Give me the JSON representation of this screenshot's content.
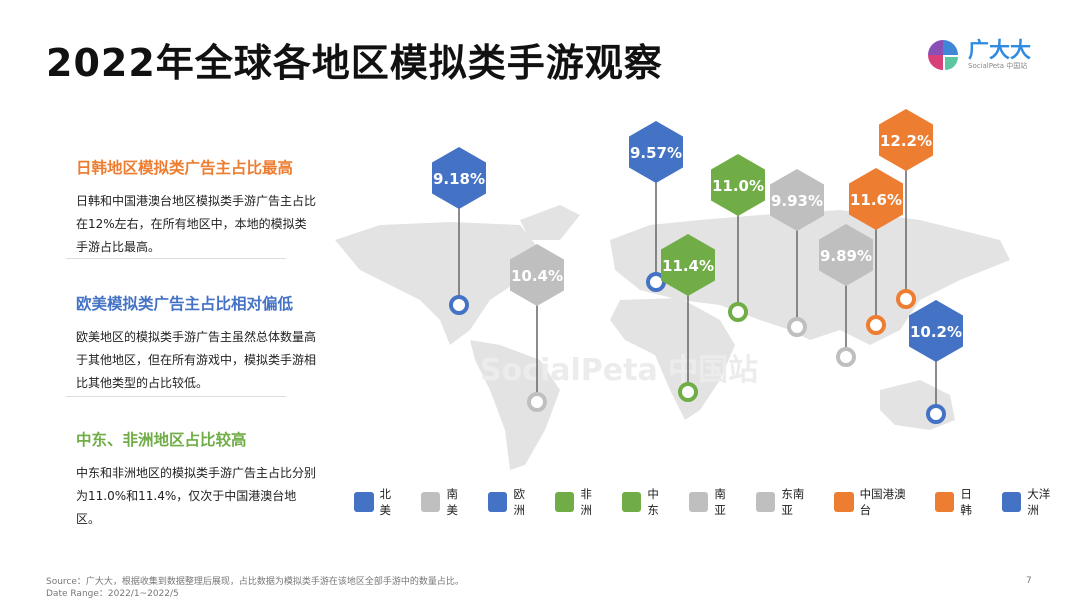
{
  "title": "2022年全球各地区模拟类手游观察",
  "logo": {
    "name": "广大大",
    "sub": "SocialPeta 中国站"
  },
  "watermark": "SocialPeta 中国站",
  "sections": [
    {
      "heading": "日韩地区模拟类广告主占比最高",
      "color": "#ED7D31",
      "body": "日韩和中国港澳台地区模拟类手游广告主占比在12%左右，在所有地区中，本地的模拟类手游占比最高。"
    },
    {
      "heading": "欧美模拟类广告主占比相对偏低",
      "color": "#4472C4",
      "body": "欧美地区的模拟类手游广告主虽然总体数量高于其他地区，但在所有游戏中，模拟类手游相比其他类型的占比较低。"
    },
    {
      "heading": "中东、非洲地区占比较高",
      "color": "#70AD47",
      "body": "中东和非洲地区的模拟类手游广告主占比分别为11.0%和11.4%，仅次于中国港澳台地区。"
    }
  ],
  "colors": {
    "blue": "#4472C4",
    "gray": "#BFBFBF",
    "green": "#70AD47",
    "orange": "#ED7D31"
  },
  "regions": [
    {
      "name": "北美",
      "value": "9.18%",
      "color": "#4472C4"
    },
    {
      "name": "南美",
      "value": "10.4%",
      "color": "#BFBFBF"
    },
    {
      "name": "欧洲",
      "value": "9.57%",
      "color": "#4472C4"
    },
    {
      "name": "非洲",
      "value": "11.4%",
      "color": "#70AD47"
    },
    {
      "name": "中东",
      "value": "11.0%",
      "color": "#70AD47"
    },
    {
      "name": "南亚",
      "value": "9.93%",
      "color": "#BFBFBF"
    },
    {
      "name": "东南亚",
      "value": "9.89%",
      "color": "#BFBFBF"
    },
    {
      "name": "中国港澳台",
      "value": "11.6%",
      "color": "#ED7D31"
    },
    {
      "name": "日韩",
      "value": "12.2%",
      "color": "#ED7D31"
    },
    {
      "name": "大洋洲",
      "value": "10.2%",
      "color": "#4472C4"
    }
  ],
  "footer": {
    "source": "Source：广大大，根据收集到数据整理后展现，占比数据为模拟类手游在该地区全部手游中的数量占比。",
    "date_range": "Date Range：2022/1~2022/5",
    "page": "7"
  }
}
